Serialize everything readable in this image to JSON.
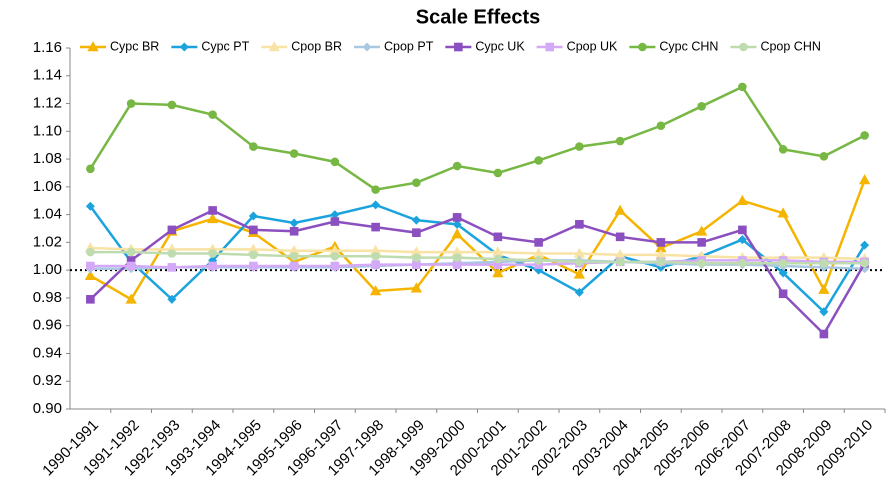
{
  "chart_data": {
    "type": "line",
    "title": "Scale Effects",
    "categories": [
      "1990-1991",
      "1991-1992",
      "1992-1993",
      "1993-1994",
      "1994-1995",
      "1995-1996",
      "1996-1997",
      "1997-1998",
      "1998-1999",
      "1999-2000",
      "2000-2001",
      "2001-2002",
      "2002-2003",
      "2003-2004",
      "2004-2005",
      "2005-2006",
      "2006-2007",
      "2007-2008",
      "2008-2009",
      "2009-2010"
    ],
    "series": [
      {
        "name": "Cypc BR",
        "color": "#f4b400",
        "marker": "triangle",
        "values": [
          0.996,
          0.979,
          1.028,
          1.037,
          1.027,
          1.006,
          1.017,
          0.985,
          0.987,
          1.026,
          0.998,
          1.011,
          0.997,
          1.043,
          1.016,
          1.028,
          1.05,
          1.041,
          0.986,
          1.065
        ]
      },
      {
        "name": "Cypc PT",
        "color": "#1ba3dd",
        "marker": "diamond",
        "values": [
          1.046,
          1.006,
          0.979,
          1.007,
          1.039,
          1.034,
          1.04,
          1.047,
          1.036,
          1.033,
          1.011,
          1.0,
          0.984,
          1.01,
          1.002,
          1.01,
          1.022,
          0.998,
          0.97,
          1.018
        ]
      },
      {
        "name": "Cpop BR",
        "color": "#f8e2a4",
        "marker": "triangle",
        "values": [
          1.016,
          1.015,
          1.015,
          1.015,
          1.015,
          1.014,
          1.014,
          1.014,
          1.013,
          1.013,
          1.013,
          1.012,
          1.012,
          1.011,
          1.011,
          1.01,
          1.009,
          1.009,
          1.009,
          1.008
        ]
      },
      {
        "name": "Cpop PT",
        "color": "#a9c9e3",
        "marker": "diamond",
        "values": [
          1.001,
          1.001,
          1.002,
          1.002,
          1.002,
          1.002,
          1.002,
          1.003,
          1.004,
          1.005,
          1.006,
          1.007,
          1.007,
          1.006,
          1.005,
          1.004,
          1.004,
          1.003,
          1.002,
          1.001
        ]
      },
      {
        "name": "Cypc UK",
        "color": "#8b4fc0",
        "marker": "square",
        "values": [
          0.979,
          1.007,
          1.029,
          1.043,
          1.029,
          1.028,
          1.035,
          1.031,
          1.027,
          1.038,
          1.024,
          1.02,
          1.033,
          1.024,
          1.02,
          1.02,
          1.029,
          0.983,
          0.954,
          1.005
        ]
      },
      {
        "name": "Cpop UK",
        "color": "#d4a9f7",
        "marker": "square",
        "values": [
          1.003,
          1.003,
          1.002,
          1.003,
          1.003,
          1.003,
          1.003,
          1.004,
          1.004,
          1.004,
          1.004,
          1.004,
          1.005,
          1.006,
          1.006,
          1.007,
          1.007,
          1.007,
          1.006,
          1.006
        ]
      },
      {
        "name": "Cypc CHN",
        "color": "#77b743",
        "marker": "circle",
        "values": [
          1.073,
          1.12,
          1.119,
          1.112,
          1.089,
          1.084,
          1.078,
          1.058,
          1.063,
          1.075,
          1.07,
          1.079,
          1.089,
          1.093,
          1.104,
          1.118,
          1.132,
          1.087,
          1.082,
          1.097
        ]
      },
      {
        "name": "Cpop CHN",
        "color": "#bfdcb0",
        "marker": "circle",
        "values": [
          1.013,
          1.013,
          1.012,
          1.012,
          1.011,
          1.01,
          1.01,
          1.01,
          1.009,
          1.009,
          1.008,
          1.007,
          1.006,
          1.006,
          1.006,
          1.005,
          1.005,
          1.005,
          1.005,
          1.005
        ]
      }
    ],
    "ylim": [
      0.9,
      1.16
    ],
    "yticks": [
      {
        "value": 0.9,
        "label": "0.90"
      },
      {
        "value": 0.92,
        "label": "0.92"
      },
      {
        "value": 0.94,
        "label": "0.94"
      },
      {
        "value": 0.96,
        "label": "0.96"
      },
      {
        "value": 0.98,
        "label": "0.98"
      },
      {
        "value": 1.0,
        "label": "1.00"
      },
      {
        "value": 1.02,
        "label": "1.02"
      },
      {
        "value": 1.04,
        "label": "1.04"
      },
      {
        "value": 1.06,
        "label": "1.06"
      },
      {
        "value": 1.08,
        "label": "1.08"
      },
      {
        "value": 1.1,
        "label": "1.10"
      },
      {
        "value": 1.12,
        "label": "1.12"
      },
      {
        "value": 1.14,
        "label": "1.14"
      },
      {
        "value": 1.16,
        "label": "1.16"
      }
    ],
    "reference_line": 1,
    "legend": "top"
  }
}
